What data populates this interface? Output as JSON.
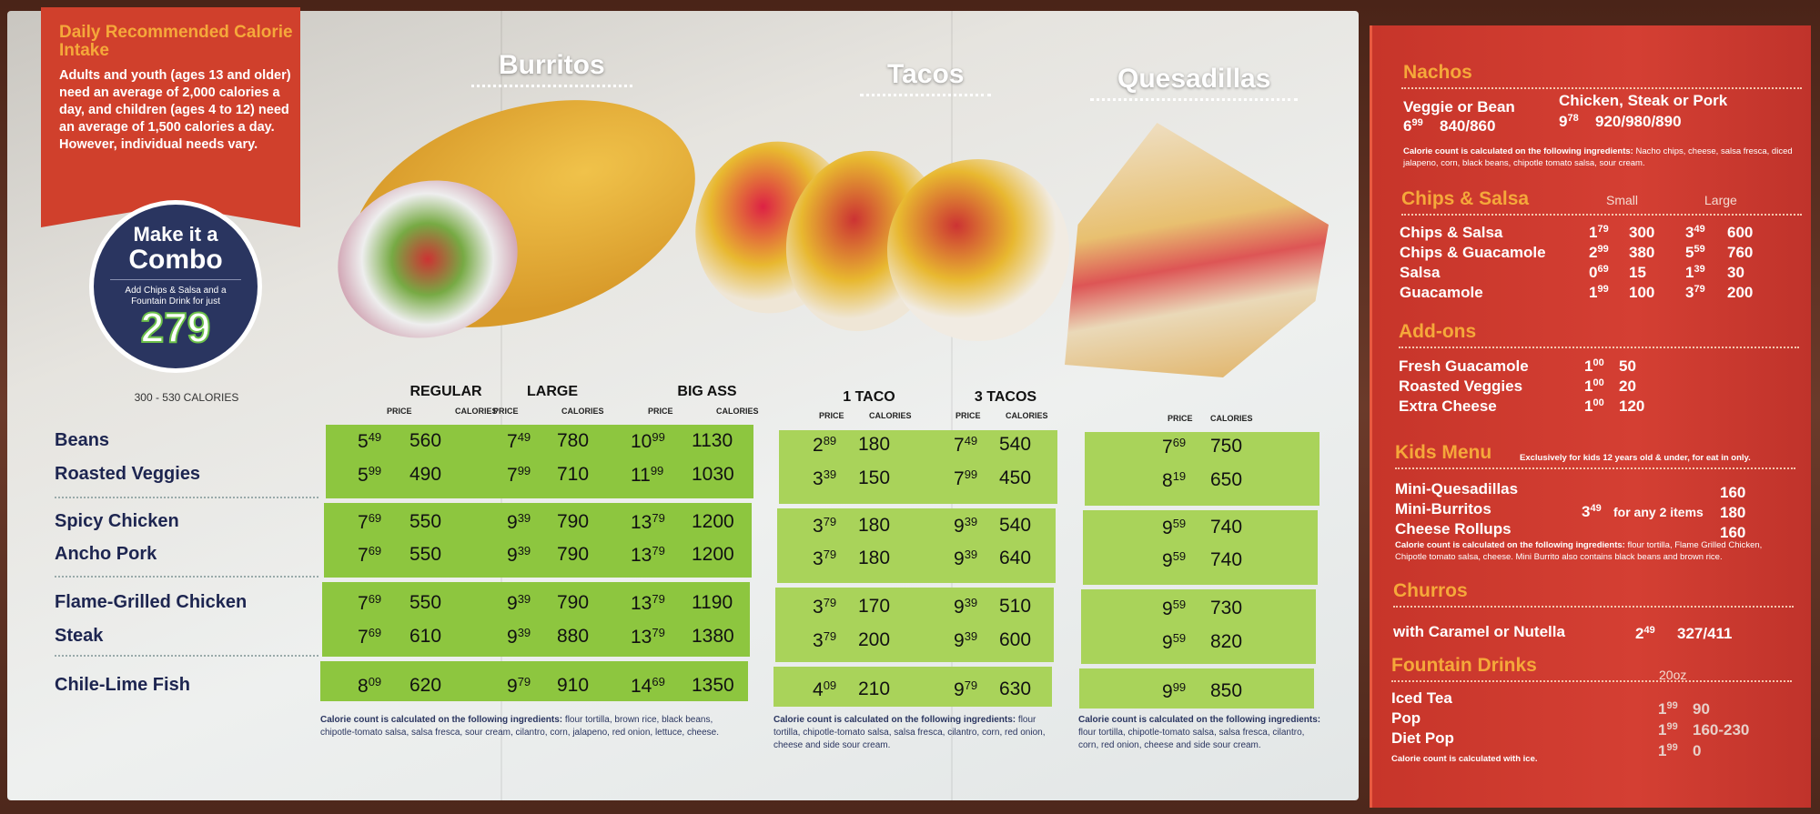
{
  "callout": {
    "title": "Daily Recommended Calorie Intake",
    "body": "Adults and youth (ages 13 and older) need an average of 2,000 calories a day, and children (ages 4 to 12) need an average of 1,500 calories a day. However, individual needs vary."
  },
  "combo": {
    "line1": "Make it a",
    "line2": "Combo",
    "desc": "Add Chips & Salsa and a Fountain Drink for just",
    "price": "279",
    "calories": "300 - 530 CALORIES"
  },
  "categories": {
    "burritos": "Burritos",
    "tacos": "Tacos",
    "quesadillas": "Quesadillas"
  },
  "columns": {
    "price": "PRICE",
    "calories": "CALORIES",
    "burritos": [
      "REGULAR",
      "LARGE",
      "BIG ASS"
    ],
    "tacos": [
      "1 TACO",
      "3 TACOS"
    ]
  },
  "colors": {
    "green": "#8dc63f",
    "red_panel": "#d43f33",
    "heading_orange": "#f5a83a",
    "navy": "#1d2550"
  },
  "rows": [
    {
      "name": "Beans",
      "burritos": [
        [
          "5",
          "49",
          "560"
        ],
        [
          "7",
          "49",
          "780"
        ],
        [
          "10",
          "99",
          "1130"
        ]
      ],
      "tacos": [
        [
          "2",
          "89",
          "180"
        ],
        [
          "7",
          "49",
          "540"
        ]
      ],
      "quesadilla": [
        "7",
        "69",
        "750"
      ]
    },
    {
      "name": "Roasted Veggies",
      "burritos": [
        [
          "5",
          "99",
          "490"
        ],
        [
          "7",
          "99",
          "710"
        ],
        [
          "11",
          "99",
          "1030"
        ]
      ],
      "tacos": [
        [
          "3",
          "39",
          "150"
        ],
        [
          "7",
          "99",
          "450"
        ]
      ],
      "quesadilla": [
        "8",
        "19",
        "650"
      ]
    },
    {
      "name": "Spicy Chicken",
      "burritos": [
        [
          "7",
          "69",
          "550"
        ],
        [
          "9",
          "39",
          "790"
        ],
        [
          "13",
          "79",
          "1200"
        ]
      ],
      "tacos": [
        [
          "3",
          "79",
          "180"
        ],
        [
          "9",
          "39",
          "540"
        ]
      ],
      "quesadilla": [
        "9",
        "59",
        "740"
      ]
    },
    {
      "name": "Ancho Pork",
      "burritos": [
        [
          "7",
          "69",
          "550"
        ],
        [
          "9",
          "39",
          "790"
        ],
        [
          "13",
          "79",
          "1200"
        ]
      ],
      "tacos": [
        [
          "3",
          "79",
          "180"
        ],
        [
          "9",
          "39",
          "640"
        ]
      ],
      "quesadilla": [
        "9",
        "59",
        "740"
      ]
    },
    {
      "name": "Flame-Grilled Chicken",
      "burritos": [
        [
          "7",
          "69",
          "550"
        ],
        [
          "9",
          "39",
          "790"
        ],
        [
          "13",
          "79",
          "1190"
        ]
      ],
      "tacos": [
        [
          "3",
          "79",
          "170"
        ],
        [
          "9",
          "39",
          "510"
        ]
      ],
      "quesadilla": [
        "9",
        "59",
        "730"
      ]
    },
    {
      "name": "Steak",
      "burritos": [
        [
          "7",
          "69",
          "610"
        ],
        [
          "9",
          "39",
          "880"
        ],
        [
          "13",
          "79",
          "1380"
        ]
      ],
      "tacos": [
        [
          "3",
          "79",
          "200"
        ],
        [
          "9",
          "39",
          "600"
        ]
      ],
      "quesadilla": [
        "9",
        "59",
        "820"
      ]
    },
    {
      "name": "Chile-Lime Fish",
      "burritos": [
        [
          "8",
          "09",
          "620"
        ],
        [
          "9",
          "79",
          "910"
        ],
        [
          "14",
          "69",
          "1350"
        ]
      ],
      "tacos": [
        [
          "4",
          "09",
          "210"
        ],
        [
          "9",
          "79",
          "630"
        ]
      ],
      "quesadilla": [
        "9",
        "99",
        "850"
      ]
    }
  ],
  "footnotes": {
    "lead": "Calorie count is calculated on the following ingredients:",
    "burritos": "flour tortilla, brown rice, black beans, chipotle-tomato salsa, salsa fresca, sour cream, cilantro, corn, jalapeno, red onion, lettuce, cheese.",
    "tacos": "flour tortilla, chipotle-tomato salsa, salsa fresca, cilantro, corn, red onion, cheese and side sour cream.",
    "quesadillas": "flour tortilla, chipotle-tomato salsa, salsa fresca, cilantro, corn, red onion, cheese and side sour cream."
  },
  "side_menu": {
    "nachos": {
      "title": "Nachos",
      "items": [
        {
          "name": "Veggie or Bean",
          "price": [
            "6",
            "99"
          ],
          "cal": "840/860"
        },
        {
          "name": "Chicken, Steak or Pork",
          "price": [
            "9",
            "78"
          ],
          "cal": "920/980/890"
        }
      ],
      "note_lead": "Calorie count is calculated on the following ingredients:",
      "note": "Nacho chips, cheese, salsa fresca, diced jalapeno, corn, black beans, chipotle tomato salsa, sour cream."
    },
    "chips": {
      "title": "Chips & Salsa",
      "small": "Small",
      "large": "Large",
      "items": [
        {
          "name": "Chips & Salsa",
          "small": [
            "1",
            "79",
            "300"
          ],
          "large": [
            "3",
            "49",
            "600"
          ]
        },
        {
          "name": "Chips & Guacamole",
          "small": [
            "2",
            "99",
            "380"
          ],
          "large": [
            "5",
            "59",
            "760"
          ]
        },
        {
          "name": "Salsa",
          "small": [
            "0",
            "69",
            "15"
          ],
          "large": [
            "1",
            "39",
            "30"
          ]
        },
        {
          "name": "Guacamole",
          "small": [
            "1",
            "99",
            "100"
          ],
          "large": [
            "3",
            "79",
            "200"
          ]
        }
      ]
    },
    "addons": {
      "title": "Add-ons",
      "items": [
        {
          "name": "Fresh Guacamole",
          "price": [
            "1",
            "00"
          ],
          "cal": "50"
        },
        {
          "name": "Roasted Veggies",
          "price": [
            "1",
            "00"
          ],
          "cal": "20"
        },
        {
          "name": "Extra Cheese",
          "price": [
            "1",
            "00"
          ],
          "cal": "120"
        }
      ]
    },
    "kids": {
      "title": "Kids Menu",
      "subtitle": "Exclusively for kids 12 years old & under, for eat in only.",
      "items": [
        {
          "name": "Mini-Quesadillas",
          "cal": "160"
        },
        {
          "name": "Mini-Burritos",
          "cal": "180"
        },
        {
          "name": "Cheese Rollups",
          "cal": "160"
        }
      ],
      "price": [
        "3",
        "49"
      ],
      "price_note": "for any 2 items",
      "note_lead": "Calorie count is calculated on the following ingredients:",
      "note": "flour tortilla, Flame Grilled Chicken, Chipotle tomato salsa, cheese. Mini Burrito also contains black beans and brown rice."
    },
    "churros": {
      "title": "Churros",
      "name": "with Caramel or Nutella",
      "price": [
        "2",
        "49"
      ],
      "cal": "327/411"
    },
    "drinks": {
      "title": "Fountain Drinks",
      "size": "20oz",
      "items": [
        {
          "name": "Iced Tea",
          "price": [
            "1",
            "99"
          ],
          "cal": "90"
        },
        {
          "name": "Pop",
          "price": [
            "1",
            "99"
          ],
          "cal": "160-230"
        },
        {
          "name": "Diet Pop",
          "price": [
            "1",
            "99"
          ],
          "cal": "0"
        }
      ],
      "note": "Calorie count is calculated with ice."
    }
  }
}
